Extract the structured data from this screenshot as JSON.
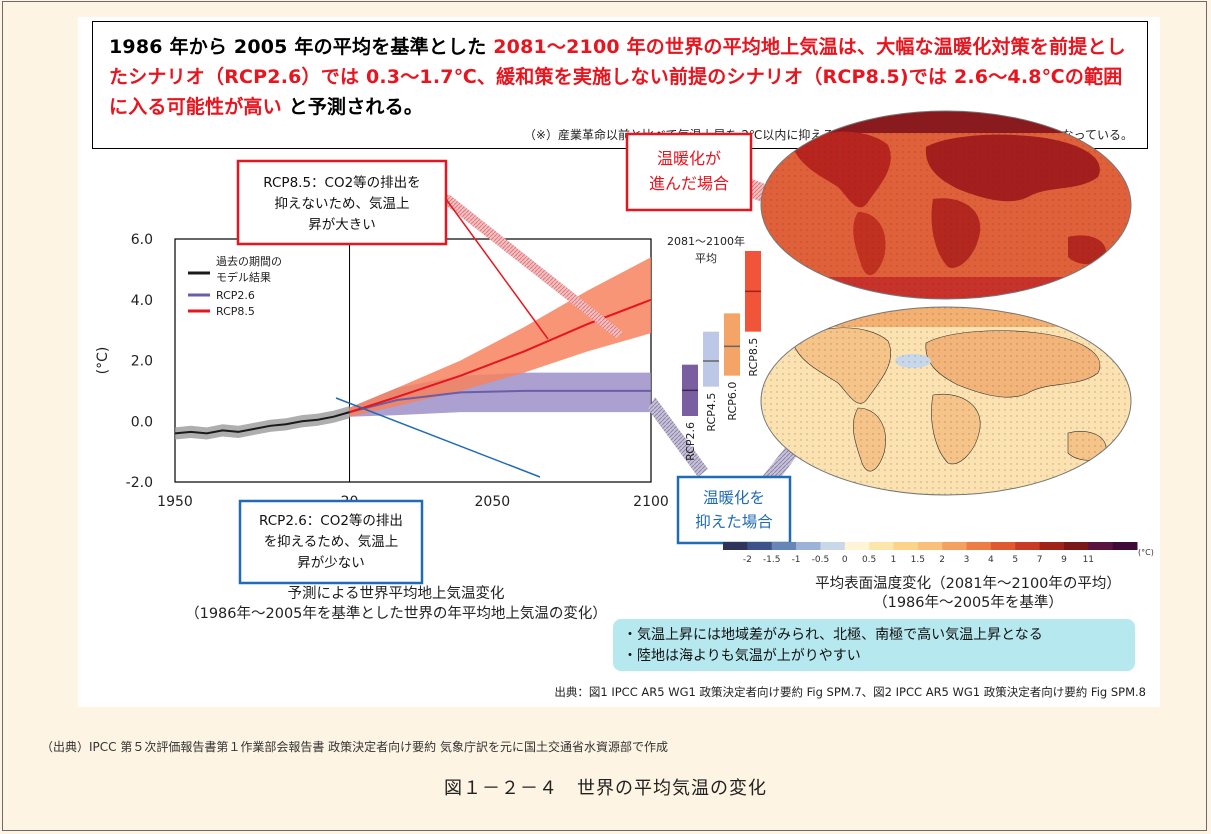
{
  "headline": {
    "part1": "1986 年から 2005 年の平均を基準とした ",
    "part2": "2081～2100 年の世界の平均地上気温は、大幅な温暖化対策を前提としたシナリオ（RCP2.6）では 0.3～1.7℃、緩和策を実施しない前提のシナリオ（RCP8.5)では 2.6～4.8℃の範囲に入る可能性が高い",
    "part3": " と予測される。",
    "note": "（※）産業革命以前と比べて気温上昇を 2℃以内に抑えることが重要であると国際社会の共通課題となっている。"
  },
  "callouts": {
    "rcp85_lines": [
      "RCP8.5：CO2等の排出を",
      "抑えないため、気温上",
      "昇が大きい"
    ],
    "rcp26_lines": [
      "RCP2.6：CO2等の排出",
      "を抑えるため、気温上",
      "昇が少ない"
    ],
    "warming_lines": [
      "温暖化が",
      "進んだ場合"
    ],
    "mitigated_lines": [
      "温暖化を",
      "抑えた場合"
    ]
  },
  "chart_data": [
    {
      "type": "line",
      "ylabel": "(°C)",
      "ylim": [
        -2.0,
        6.0
      ],
      "yticks": [
        "6.0",
        "4.0",
        "2.0",
        "0.0",
        "-2.0"
      ],
      "xlim": [
        1950,
        2100
      ],
      "xticks": [
        "1950",
        "20",
        "2050",
        "2100"
      ],
      "legend": {
        "placement": "top-left",
        "entries": [
          "過去の期間の",
          "モデル結果",
          "RCP2.6",
          "RCP8.5"
        ]
      },
      "series": [
        {
          "name": "過去の期間のモデル結果",
          "color": "#1a1a1a",
          "x": [
            1950,
            1955,
            1960,
            1965,
            1970,
            1975,
            1980,
            1985,
            1990,
            1995,
            2000,
            2005
          ],
          "y": [
            -0.4,
            -0.35,
            -0.4,
            -0.3,
            -0.35,
            -0.25,
            -0.15,
            -0.1,
            0.0,
            0.05,
            0.15,
            0.3
          ]
        },
        {
          "name": "RCP2.6",
          "color": "#6b5ea8",
          "x": [
            2005,
            2020,
            2040,
            2060,
            2080,
            2100
          ],
          "y": [
            0.3,
            0.7,
            0.95,
            1.0,
            1.0,
            1.0
          ],
          "band_low": [
            0.15,
            0.2,
            0.3,
            0.3,
            0.3,
            0.3
          ],
          "band_high": [
            0.45,
            1.1,
            1.5,
            1.6,
            1.6,
            1.6
          ]
        },
        {
          "name": "RCP8.5",
          "color": "#e8141e",
          "x": [
            2005,
            2020,
            2040,
            2060,
            2080,
            2100
          ],
          "y": [
            0.3,
            0.8,
            1.5,
            2.3,
            3.2,
            4.0
          ],
          "band_low": [
            0.15,
            0.5,
            1.0,
            1.6,
            2.3,
            2.9
          ],
          "band_high": [
            0.45,
            1.1,
            2.0,
            3.1,
            4.3,
            5.4
          ]
        }
      ]
    },
    {
      "type": "bar",
      "title_lines": [
        "2081～2100年",
        "平均"
      ],
      "categories": [
        "RCP2.6",
        "RCP4.5",
        "RCP6.0",
        "RCP8.5"
      ],
      "ranges": [
        [
          0.3,
          1.7
        ],
        [
          1.1,
          2.6
        ],
        [
          1.4,
          3.1
        ],
        [
          2.6,
          4.8
        ]
      ],
      "means": [
        1.0,
        1.8,
        2.2,
        3.7
      ],
      "colors": [
        "#7b5ea0",
        "#bcc8e6",
        "#f4a467",
        "#f0553a"
      ]
    },
    {
      "type": "heatmap",
      "colorbar_unit": "(°C)",
      "colorbar_ticks": [
        "-2",
        "-1.5",
        "-1",
        "-0.5",
        "0",
        "0.5",
        "1",
        "1.5",
        "2",
        "3",
        "4",
        "5",
        "7",
        "9",
        "11"
      ],
      "colorbar_colors": [
        "#2f3559",
        "#3d528a",
        "#6785b5",
        "#9ab3d6",
        "#c8d8ea",
        "#fff4d6",
        "#fde6ab",
        "#fcd488",
        "#f9c07a",
        "#f3a060",
        "#ec7d44",
        "#e05a30",
        "#c83b24",
        "#a0231a",
        "#7a1818",
        "#5a1240",
        "#3e0a3a"
      ],
      "maps": [
        {
          "label": "温暖化が進んだ場合"
        },
        {
          "label": "温暖化を抑えた場合"
        }
      ]
    }
  ],
  "captions": {
    "left_line1": "予測による世界平均地上気温変化",
    "left_line2": "（1986年～2005年を基準とした世界の年平均地上気温の変化）",
    "right_line1": "平均表面温度変化（2081年～2100年の平均）",
    "right_line2": "（1986年～2005年を基準）"
  },
  "takeaways": [
    "・気温上昇には地域差がみられ、北極、南極で高い気温上昇となる",
    "・陸地は海よりも気温が上がりやすい"
  ],
  "source_line": "出典：図1 IPCC AR5 WG1 政策決定者向け要約 Fig SPM.7、図2 IPCC AR5 WG1 政策決定者向け要約 Fig SPM.8",
  "footer_source": "（出典）IPCC 第５次評価報告書第１作業部会報告書 政策決定者向け要約 気象庁訳を元に国土交通省水資源部で作成",
  "figure_caption": "図１－２－４　世界の平均気温の変化"
}
